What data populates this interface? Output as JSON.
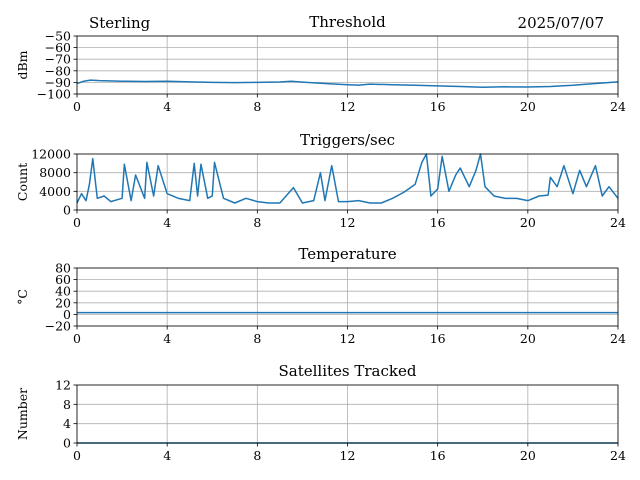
{
  "header": {
    "left": "Sterling",
    "right": "2025/07/07"
  },
  "colors": {
    "series": "#1f77b4",
    "grid": "#b0b0b0",
    "axis": "#000000"
  },
  "chart_data": [
    {
      "type": "line",
      "title": "Threshold",
      "ylabel": "dBm",
      "xlim": [
        0,
        24
      ],
      "ylim": [
        -100,
        -50
      ],
      "xticks": [
        0,
        4,
        8,
        12,
        16,
        20,
        24
      ],
      "yticks": [
        -100,
        -90,
        -80,
        -70,
        -60,
        -50
      ],
      "ytick_labels": [
        "−100",
        "−90",
        "−80",
        "−70",
        "−60",
        "−50"
      ],
      "grid": true,
      "series": [
        {
          "x": [
            0,
            0.3,
            0.6,
            1,
            2,
            3,
            4,
            5,
            6,
            7,
            8,
            9,
            9.5,
            10,
            11,
            12,
            12.5,
            13,
            14,
            15,
            16,
            17,
            18,
            19,
            20,
            21,
            22,
            23,
            24
          ],
          "y": [
            -91,
            -89,
            -88,
            -88.5,
            -89,
            -89.2,
            -89,
            -89.5,
            -90,
            -90.2,
            -90,
            -89.6,
            -89,
            -89.8,
            -91,
            -92,
            -92.3,
            -91.5,
            -92,
            -92.5,
            -93,
            -93.5,
            -94.2,
            -93.8,
            -94,
            -93.5,
            -92.5,
            -91,
            -89.5
          ]
        }
      ]
    },
    {
      "type": "line",
      "title": "Triggers/sec",
      "ylabel": "Count",
      "xlim": [
        0,
        24
      ],
      "ylim": [
        0,
        12000
      ],
      "xticks": [
        0,
        4,
        8,
        12,
        16,
        20,
        24
      ],
      "yticks": [
        0,
        4000,
        8000,
        12000
      ],
      "grid": true,
      "series": [
        {
          "x": [
            0,
            0.2,
            0.4,
            0.55,
            0.7,
            0.9,
            1.2,
            1.5,
            2,
            2.1,
            2.4,
            2.6,
            3,
            3.1,
            3.4,
            3.6,
            4,
            4.5,
            5,
            5.2,
            5.35,
            5.5,
            5.8,
            6,
            6.1,
            6.5,
            7,
            7.5,
            8,
            8.5,
            9,
            9.6,
            10,
            10.5,
            10.8,
            11,
            11.3,
            11.6,
            12,
            12.5,
            13,
            13.5,
            14,
            14.5,
            15,
            15.3,
            15.5,
            15.7,
            16,
            16.2,
            16.5,
            16.8,
            17,
            17.4,
            17.7,
            17.9,
            18.1,
            18.5,
            19,
            19.5,
            20,
            20.5,
            20.9,
            21,
            21.3,
            21.6,
            22,
            22.3,
            22.6,
            23,
            23.3,
            23.6,
            24
          ],
          "y": [
            1500,
            3500,
            2000,
            5500,
            11000,
            2500,
            3000,
            1800,
            2500,
            9800,
            2000,
            7500,
            2500,
            10200,
            3000,
            9500,
            3500,
            2500,
            2000,
            10000,
            3000,
            9800,
            2500,
            3000,
            10200,
            2500,
            1500,
            2500,
            1800,
            1500,
            1500,
            4800,
            1500,
            2000,
            8000,
            2000,
            9500,
            1800,
            1800,
            2000,
            1500,
            1500,
            2500,
            3800,
            5500,
            10200,
            12000,
            3000,
            4500,
            11500,
            4000,
            7500,
            9000,
            5000,
            8500,
            12000,
            5000,
            3000,
            2500,
            2500,
            2000,
            3000,
            3200,
            7000,
            5000,
            9500,
            3500,
            8500,
            5000,
            9500,
            3000,
            5000,
            2500
          ]
        }
      ]
    },
    {
      "type": "line",
      "title": "Temperature",
      "ylabel": "°C",
      "xlim": [
        0,
        24
      ],
      "ylim": [
        -20,
        80
      ],
      "xticks": [
        0,
        4,
        8,
        12,
        16,
        20,
        24
      ],
      "yticks": [
        -20,
        0,
        20,
        40,
        60,
        80
      ],
      "ytick_labels": [
        "−20",
        "0",
        "20",
        "40",
        "60",
        "80"
      ],
      "grid": true,
      "series": [
        {
          "x": [
            0,
            24
          ],
          "y": [
            3,
            3
          ]
        }
      ]
    },
    {
      "type": "line",
      "title": "Satellites Tracked",
      "ylabel": "Number",
      "xlim": [
        0,
        24
      ],
      "ylim": [
        0,
        12
      ],
      "xticks": [
        0,
        4,
        8,
        12,
        16,
        20,
        24
      ],
      "yticks": [
        0,
        4,
        8,
        12
      ],
      "grid": true,
      "series": [
        {
          "x": [
            0,
            24
          ],
          "y": [
            0,
            0
          ]
        }
      ]
    }
  ]
}
